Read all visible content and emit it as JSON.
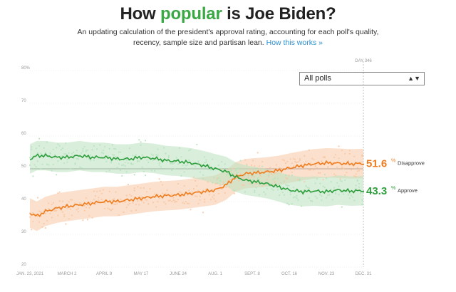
{
  "header": {
    "title_pre": "How ",
    "title_hl": "popular",
    "title_post": " is Joe Biden?",
    "subtitle_line1": "An updating calculation of the president's approval rating, accounting for each poll's quality,",
    "subtitle_line2": "recency, sample size and partisan lean.",
    "link": "How this works »"
  },
  "filter": {
    "selected": "All polls",
    "arrows": "▲▼"
  },
  "chart_data": {
    "type": "line",
    "x_start": "2021-01-23",
    "x_end": "2021-12-31",
    "x_ticks": [
      {
        "label": "JAN. 23, 2021",
        "date": "2021-01-23"
      },
      {
        "label": "MARCH 2",
        "date": "2021-03-02"
      },
      {
        "label": "APRIL 9",
        "date": "2021-04-09"
      },
      {
        "label": "MAY 17",
        "date": "2021-05-17"
      },
      {
        "label": "JUNE 24",
        "date": "2021-06-24"
      },
      {
        "label": "AUG. 1",
        "date": "2021-08-01"
      },
      {
        "label": "SEPT. 8",
        "date": "2021-09-08"
      },
      {
        "label": "OCT. 16",
        "date": "2021-10-16"
      },
      {
        "label": "NOV. 23",
        "date": "2021-11-23"
      },
      {
        "label": "DEC. 31",
        "date": "2021-12-31"
      }
    ],
    "ylim": [
      20,
      80
    ],
    "y_ticks": [
      {
        "value": 80,
        "label": "80%"
      },
      {
        "value": 70,
        "label": "70"
      },
      {
        "value": 60,
        "label": "60"
      },
      {
        "value": 50,
        "label": "50"
      },
      {
        "value": 40,
        "label": "40"
      },
      {
        "value": 30,
        "label": "30"
      },
      {
        "value": 20,
        "label": "20"
      }
    ],
    "day_label": "DAY 346",
    "series": [
      {
        "name": "Disapprove",
        "color": "#ef7d1f",
        "band_color": "#f8c8a4",
        "end_value": "51.6",
        "points": [
          [
            "2021-01-23",
            36.5
          ],
          [
            "2021-01-30",
            35.5
          ],
          [
            "2021-02-08",
            37.0
          ],
          [
            "2021-02-20",
            38.0
          ],
          [
            "2021-03-02",
            38.5
          ],
          [
            "2021-03-15",
            39.0
          ],
          [
            "2021-03-28",
            39.5
          ],
          [
            "2021-04-09",
            40.0
          ],
          [
            "2021-04-22",
            40.0
          ],
          [
            "2021-05-05",
            40.5
          ],
          [
            "2021-05-17",
            41.0
          ],
          [
            "2021-05-30",
            41.5
          ],
          [
            "2021-06-12",
            41.8
          ],
          [
            "2021-06-24",
            42.0
          ],
          [
            "2021-07-07",
            42.5
          ],
          [
            "2021-07-20",
            43.0
          ],
          [
            "2021-08-01",
            43.5
          ],
          [
            "2021-08-12",
            45.0
          ],
          [
            "2021-08-22",
            47.5
          ],
          [
            "2021-09-01",
            48.5
          ],
          [
            "2021-09-08",
            48.7
          ],
          [
            "2021-09-22",
            49.0
          ],
          [
            "2021-10-05",
            49.5
          ],
          [
            "2021-10-16",
            50.2
          ],
          [
            "2021-10-30",
            51.0
          ],
          [
            "2021-11-10",
            51.5
          ],
          [
            "2021-11-23",
            51.8
          ],
          [
            "2021-12-05",
            51.7
          ],
          [
            "2021-12-18",
            51.5
          ],
          [
            "2021-12-31",
            51.6
          ]
        ]
      },
      {
        "name": "Approve",
        "color": "#2e9e3c",
        "band_color": "#b9e2bf",
        "end_value": "43.3",
        "points": [
          [
            "2021-01-23",
            53.0
          ],
          [
            "2021-01-30",
            54.0
          ],
          [
            "2021-02-08",
            54.0
          ],
          [
            "2021-02-20",
            53.5
          ],
          [
            "2021-03-02",
            53.5
          ],
          [
            "2021-03-15",
            54.0
          ],
          [
            "2021-03-28",
            53.5
          ],
          [
            "2021-04-09",
            53.5
          ],
          [
            "2021-04-22",
            53.0
          ],
          [
            "2021-05-05",
            53.0
          ],
          [
            "2021-05-17",
            53.5
          ],
          [
            "2021-05-30",
            53.2
          ],
          [
            "2021-06-12",
            52.5
          ],
          [
            "2021-06-24",
            52.3
          ],
          [
            "2021-07-07",
            51.8
          ],
          [
            "2021-07-20",
            51.0
          ],
          [
            "2021-08-01",
            50.0
          ],
          [
            "2021-08-12",
            49.2
          ],
          [
            "2021-08-22",
            47.5
          ],
          [
            "2021-09-01",
            46.5
          ],
          [
            "2021-09-08",
            46.2
          ],
          [
            "2021-09-22",
            45.5
          ],
          [
            "2021-10-05",
            44.5
          ],
          [
            "2021-10-16",
            43.5
          ],
          [
            "2021-10-30",
            43.0
          ],
          [
            "2021-11-10",
            43.2
          ],
          [
            "2021-11-23",
            43.0
          ],
          [
            "2021-12-05",
            43.5
          ],
          [
            "2021-12-18",
            43.2
          ],
          [
            "2021-12-31",
            43.3
          ]
        ]
      }
    ],
    "band_halfwidth": 4.5,
    "reference_line": 50
  }
}
